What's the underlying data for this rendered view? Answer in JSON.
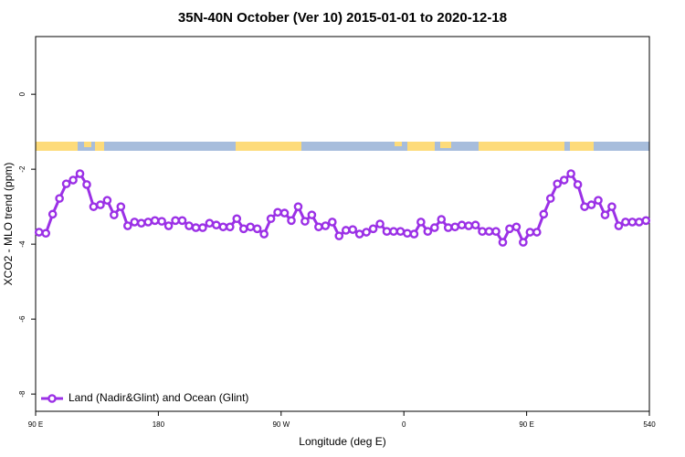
{
  "chart_data": {
    "type": "line",
    "title": "35N-40N October (Ver 10)   2015-01-01 to 2020-12-18",
    "x_label": "Longitude (deg E)",
    "y_label": "XCO2 - MLO trend (ppm)",
    "xlim": [
      90,
      540
    ],
    "xticks": [
      {
        "value": 90,
        "label": "90 E"
      },
      180,
      {
        "value": 270,
        "label": "90 W"
      },
      {
        "value": 360,
        "label": "0"
      },
      {
        "value": 450,
        "label": "90 E"
      },
      540
    ],
    "ylim": [
      -8.46,
      1.54
    ],
    "yticks": [
      0,
      -2,
      -4,
      -6,
      -8
    ],
    "legend": "bottom-left",
    "x": [
      92.5,
      97.5,
      102.5,
      107.5,
      112.5,
      117.5,
      122.5,
      127.5,
      132.5,
      137.5,
      142.5,
      147.5,
      152.5,
      157.5,
      162.5,
      167.5,
      172.5,
      177.5,
      182.5,
      187.5,
      192.5,
      197.5,
      202.5,
      207.5,
      212.5,
      217.5,
      222.5,
      227.5,
      232.5,
      237.5,
      242.5,
      247.5,
      252.5,
      257.5,
      262.5,
      267.5,
      272.5,
      277.5,
      282.5,
      287.5,
      292.5,
      297.5,
      302.5,
      307.5,
      312.5,
      317.5,
      322.5,
      327.5,
      332.5,
      337.5,
      342.5,
      347.5,
      352.5,
      357.5,
      362.5,
      367.5,
      372.5,
      377.5,
      382.5,
      387.5,
      392.5,
      397.5,
      402.5,
      407.5,
      412.5,
      417.5,
      422.5,
      427.5,
      432.5,
      437.5,
      442.5,
      447.5,
      452.5,
      457.5,
      462.5,
      467.5,
      472.5,
      477.5,
      482.5,
      487.5,
      492.5,
      497.5,
      502.5,
      507.5,
      512.5,
      517.5,
      522.5,
      527.5,
      532.5,
      537.5
    ],
    "series": [
      {
        "name": "Land (Nadir&Glint) and Ocean (Glint)",
        "color": "#9b30e6",
        "values": [
          -3.68,
          -3.71,
          -3.2,
          -2.78,
          -2.39,
          -2.29,
          -2.12,
          -2.41,
          -3.0,
          -2.95,
          -2.83,
          -3.22,
          -3.0,
          -3.51,
          -3.41,
          -3.44,
          -3.41,
          -3.37,
          -3.39,
          -3.51,
          -3.37,
          -3.37,
          -3.51,
          -3.56,
          -3.56,
          -3.44,
          -3.49,
          -3.54,
          -3.54,
          -3.32,
          -3.59,
          -3.54,
          -3.59,
          -3.73,
          -3.32,
          -3.15,
          -3.17,
          -3.37,
          -3.0,
          -3.39,
          -3.22,
          -3.54,
          -3.51,
          -3.41,
          -3.78,
          -3.63,
          -3.61,
          -3.73,
          -3.68,
          -3.59,
          -3.46,
          -3.66,
          -3.66,
          -3.66,
          -3.71,
          -3.73,
          -3.41,
          -3.66,
          -3.56,
          -3.34,
          -3.56,
          -3.54,
          -3.49,
          -3.51,
          -3.49,
          -3.66,
          -3.66,
          -3.66,
          -3.95,
          -3.59,
          -3.54,
          -3.95,
          -3.68,
          -3.68,
          -3.2,
          -2.78,
          -2.39,
          -2.29,
          -2.12,
          -2.41,
          -3.0,
          -2.95,
          -2.83,
          -3.22,
          -3.0,
          -3.51,
          -3.41,
          -3.41,
          -3.41,
          -3.37
        ]
      }
    ]
  }
}
